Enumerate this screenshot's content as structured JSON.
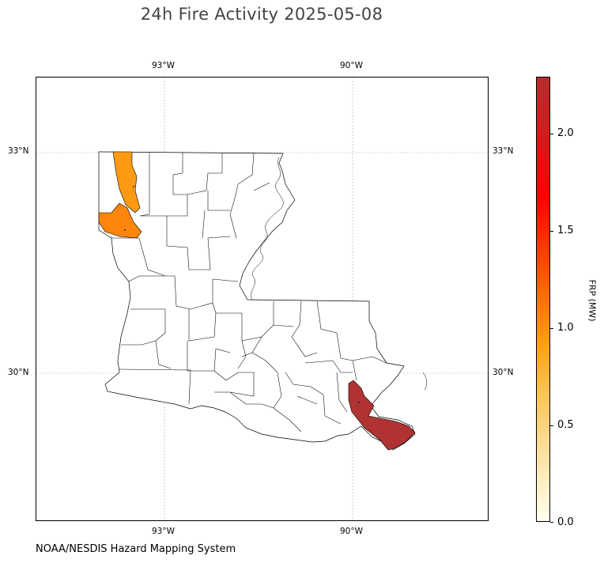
{
  "title": "24h Fire Activity 2025-05-08",
  "map": {
    "region": "Louisiana parishes",
    "longitude_ticks": [
      "93°W",
      "90°W"
    ],
    "latitude_ticks": [
      "33°N",
      "30°N"
    ],
    "gridlines": true,
    "highlighted_parishes": [
      {
        "name": "Caddo",
        "frp_mw": 0.7,
        "color": "#fc9a14"
      },
      {
        "name": "De Soto",
        "frp_mw": 0.85,
        "color": "#fd850c"
      },
      {
        "name": "Plaquemines",
        "frp_mw": 2.2,
        "color": "#b03232"
      }
    ]
  },
  "colorbar": {
    "label": "FRP (MW)",
    "ticks": [
      "0.0",
      "0.5",
      "1.0",
      "1.5",
      "2.0"
    ],
    "range": [
      0,
      2.25
    ],
    "colormap": "YlOrRd-like"
  },
  "source": "NOAA/NESDIS Hazard Mapping System"
}
